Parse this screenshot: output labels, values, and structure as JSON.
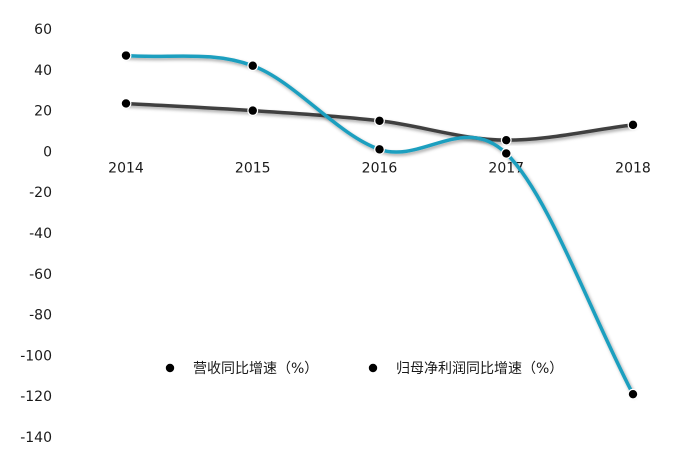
{
  "chart_data": {
    "type": "line",
    "categories": [
      "2014",
      "2015",
      "2016",
      "2017",
      "2018"
    ],
    "ylim": [
      -140,
      60
    ],
    "yticks": [
      "60",
      "40",
      "20",
      "0",
      "-20",
      "-40",
      "-60",
      "-80",
      "-100",
      "-120",
      "-140"
    ],
    "grid": false,
    "legend_position": "center",
    "series": [
      {
        "name": "营收同比增速（%）",
        "values": [
          23.5,
          20.0,
          15.0,
          5.5,
          13.0
        ],
        "color": "#404040"
      },
      {
        "name": "归母净利润同比增速（%）",
        "values": [
          47.0,
          42.0,
          1.0,
          -1.0,
          -119.0
        ],
        "color": "#1f9fbf"
      }
    ]
  }
}
